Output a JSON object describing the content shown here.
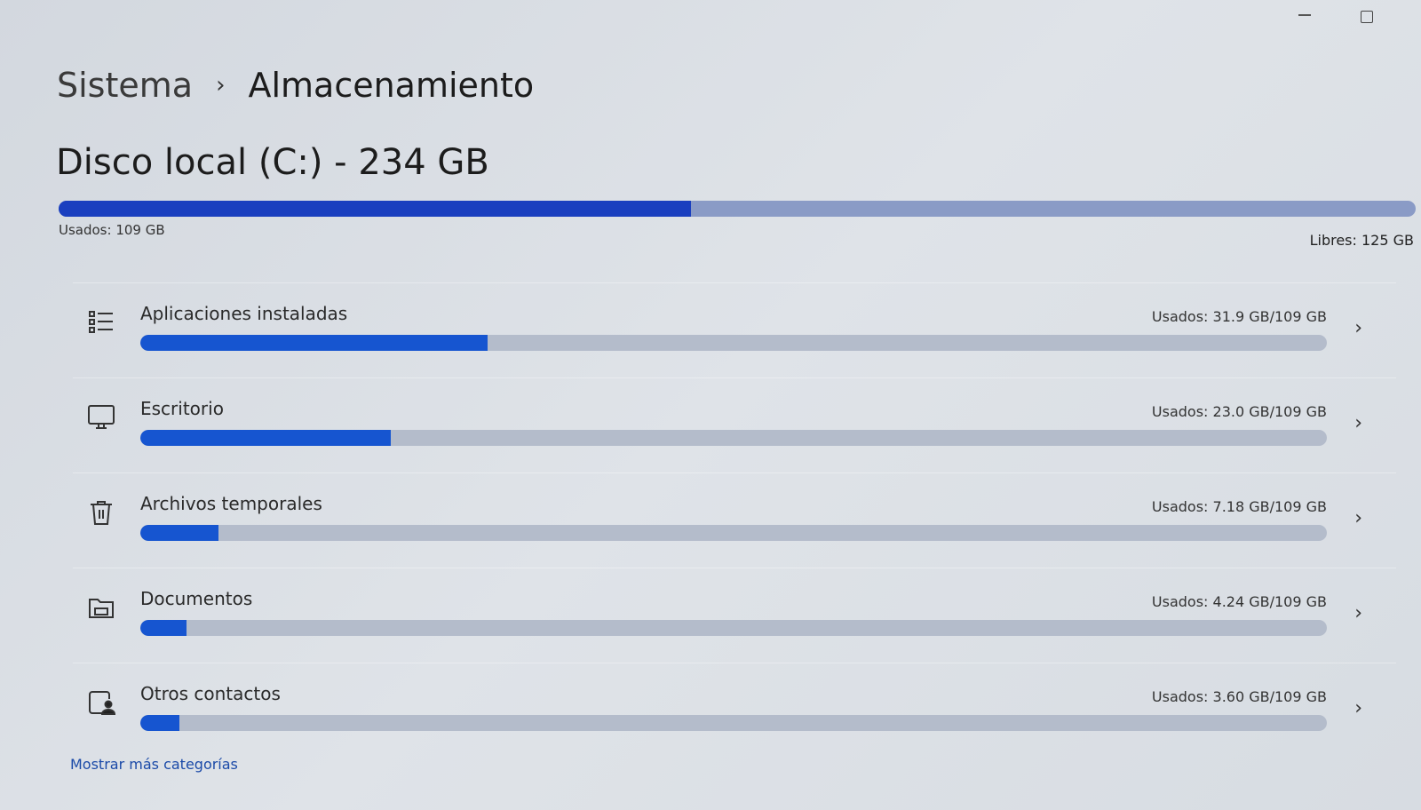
{
  "window": {
    "minimize_icon": "minimize-icon",
    "restore_icon": "restore-icon"
  },
  "breadcrumb": {
    "parent": "Sistema",
    "separator": "›",
    "current": "Almacenamiento"
  },
  "disk": {
    "title": "Disco local (C:) - 234 GB",
    "used_label": "Usados: 109 GB",
    "free_label": "Libres: 125 GB",
    "used_gb": 109,
    "total_gb": 234,
    "used_fraction": 0.466,
    "color_used": "#1a3fbf",
    "color_free": "#8a9bc6"
  },
  "categories": [
    {
      "label": "Aplicaciones instaladas",
      "value": "Usados: 31.9 GB/109 GB",
      "fraction": 0.293,
      "icon": "list-icon"
    },
    {
      "label": "Escritorio",
      "value": "Usados: 23.0 GB/109 GB",
      "fraction": 0.211,
      "icon": "monitor-icon"
    },
    {
      "label": "Archivos temporales",
      "value": "Usados: 7.18 GB/109 GB",
      "fraction": 0.066,
      "icon": "trash-icon"
    },
    {
      "label": "Documentos",
      "value": "Usados: 4.24 GB/109 GB",
      "fraction": 0.039,
      "icon": "folder-icon"
    },
    {
      "label": "Otros contactos",
      "value": "Usados: 3.60 GB/109 GB",
      "fraction": 0.033,
      "icon": "contact-icon"
    }
  ],
  "show_more": "Mostrar más categorías",
  "accent": "#1655d0"
}
